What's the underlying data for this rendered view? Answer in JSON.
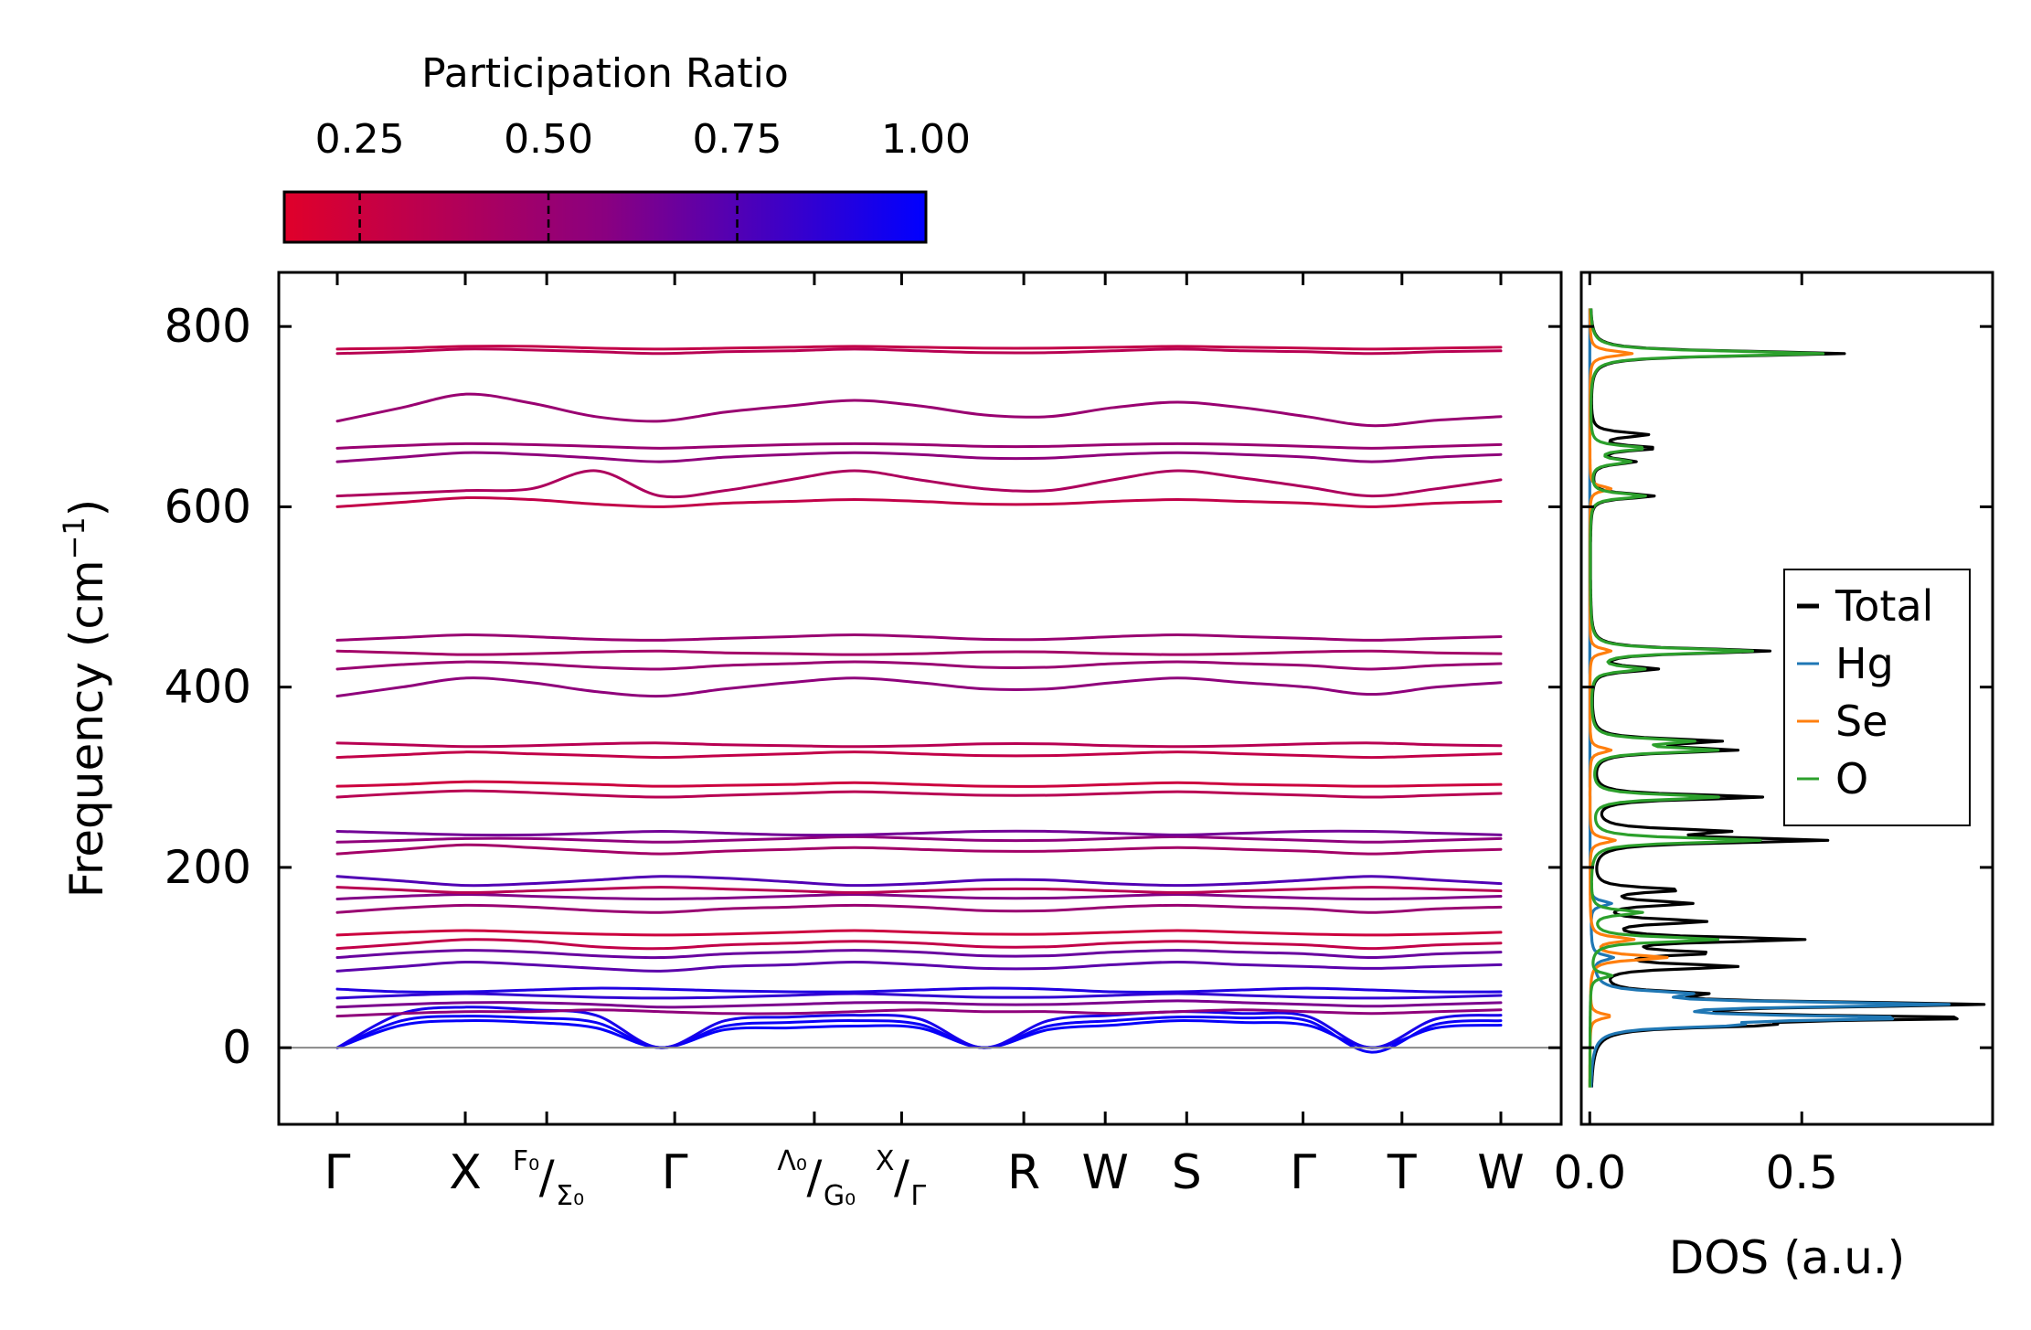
{
  "chart_data": [
    {
      "type": "line",
      "title": "",
      "ylabel": "Frequency (cm",
      "ylabel_sup": "−1",
      "ylabel_close": ")",
      "ylim": [
        -85,
        860
      ],
      "yticks": [
        0,
        200,
        400,
        600,
        800
      ],
      "x_ticks": [
        {
          "pos": 0.0,
          "label": "Γ"
        },
        {
          "pos": 0.11,
          "label": "X"
        },
        {
          "pos": 0.18,
          "label_a": "F₀",
          "label_b": "Σ₀",
          "split": true
        },
        {
          "pos": 0.29,
          "label": "Γ"
        },
        {
          "pos": 0.41,
          "label_a": "Λ₀",
          "label_b": "G₀",
          "split": true
        },
        {
          "pos": 0.485,
          "label_a": "X",
          "label_b": "Γ",
          "split": true
        },
        {
          "pos": 0.59,
          "label": "R"
        },
        {
          "pos": 0.66,
          "label": "W"
        },
        {
          "pos": 0.73,
          "label": "S"
        },
        {
          "pos": 0.83,
          "label": "Γ"
        },
        {
          "pos": 0.915,
          "label": "T"
        },
        {
          "pos": 1.0,
          "label": "W"
        }
      ],
      "colorbar": {
        "label": "Participation Ratio",
        "range": [
          0.15,
          1.0
        ],
        "ticks": [
          "0.25",
          "0.50",
          "0.75",
          "1.00"
        ],
        "tick_values": [
          0.25,
          0.5,
          0.75,
          1.0
        ],
        "colors": [
          "#e0002a",
          "#8a0080",
          "#0000ff"
        ]
      },
      "bands": [
        {
          "y": [
            0,
            25,
            30,
            28,
            22,
            0,
            20,
            22,
            24,
            22,
            0,
            20,
            25,
            30,
            28,
            25,
            0,
            22,
            25
          ],
          "pr": 0.98
        },
        {
          "y": [
            0,
            30,
            35,
            33,
            28,
            0,
            24,
            28,
            30,
            26,
            0,
            24,
            30,
            34,
            33,
            30,
            -5,
            26,
            30
          ],
          "pr": 0.97
        },
        {
          "y": [
            0,
            38,
            45,
            42,
            36,
            0,
            30,
            34,
            36,
            32,
            0,
            30,
            36,
            40,
            38,
            35,
            0,
            32,
            36
          ],
          "pr": 0.93
        },
        {
          "y": [
            35,
            38,
            40,
            40,
            42,
            40,
            38,
            38,
            40,
            42,
            40,
            40,
            38,
            40,
            42,
            40,
            38,
            40,
            42
          ],
          "pr": 0.55
        },
        {
          "y": [
            45,
            48,
            50,
            50,
            48,
            45,
            46,
            48,
            50,
            50,
            48,
            48,
            50,
            52,
            50,
            48,
            46,
            48,
            50
          ],
          "pr": 0.62
        },
        {
          "y": [
            55,
            58,
            60,
            58,
            56,
            55,
            56,
            58,
            60,
            58,
            56,
            56,
            58,
            60,
            58,
            56,
            55,
            56,
            58
          ],
          "pr": 0.85
        },
        {
          "y": [
            65,
            62,
            62,
            64,
            66,
            65,
            63,
            62,
            62,
            64,
            66,
            65,
            62,
            62,
            64,
            66,
            64,
            62,
            62
          ],
          "pr": 0.9
        },
        {
          "y": [
            85,
            90,
            95,
            92,
            88,
            85,
            90,
            92,
            95,
            92,
            88,
            88,
            92,
            95,
            92,
            90,
            88,
            90,
            92
          ],
          "pr": 0.72
        },
        {
          "y": [
            100,
            105,
            108,
            106,
            102,
            100,
            104,
            106,
            108,
            106,
            102,
            102,
            106,
            108,
            106,
            104,
            100,
            104,
            106
          ],
          "pr": 0.68
        },
        {
          "y": [
            110,
            115,
            120,
            118,
            112,
            110,
            114,
            116,
            118,
            116,
            112,
            112,
            116,
            118,
            116,
            114,
            110,
            114,
            116
          ],
          "pr": 0.3
        },
        {
          "y": [
            125,
            128,
            130,
            128,
            126,
            125,
            126,
            128,
            130,
            128,
            126,
            126,
            128,
            130,
            128,
            126,
            125,
            126,
            128
          ],
          "pr": 0.25
        },
        {
          "y": [
            150,
            155,
            158,
            156,
            152,
            150,
            154,
            156,
            158,
            156,
            152,
            152,
            156,
            158,
            156,
            154,
            150,
            154,
            156
          ],
          "pr": 0.5
        },
        {
          "y": [
            165,
            168,
            170,
            168,
            166,
            165,
            166,
            168,
            170,
            168,
            166,
            166,
            168,
            170,
            168,
            166,
            165,
            166,
            168
          ],
          "pr": 0.6
        },
        {
          "y": [
            178,
            175,
            172,
            174,
            176,
            178,
            176,
            174,
            172,
            174,
            176,
            176,
            174,
            172,
            174,
            176,
            178,
            176,
            174
          ],
          "pr": 0.35
        },
        {
          "y": [
            190,
            185,
            180,
            182,
            186,
            190,
            188,
            184,
            180,
            182,
            186,
            186,
            182,
            180,
            182,
            186,
            190,
            186,
            182
          ],
          "pr": 0.75
        },
        {
          "y": [
            215,
            220,
            225,
            222,
            218,
            215,
            218,
            220,
            222,
            220,
            218,
            218,
            220,
            222,
            220,
            218,
            215,
            218,
            220
          ],
          "pr": 0.45
        },
        {
          "y": [
            228,
            230,
            232,
            232,
            230,
            228,
            230,
            232,
            234,
            232,
            230,
            230,
            232,
            234,
            232,
            230,
            228,
            230,
            232
          ],
          "pr": 0.55
        },
        {
          "y": [
            240,
            238,
            236,
            236,
            238,
            240,
            238,
            236,
            236,
            238,
            240,
            240,
            238,
            236,
            238,
            240,
            240,
            238,
            236
          ],
          "pr": 0.65
        },
        {
          "y": [
            278,
            282,
            285,
            283,
            280,
            278,
            280,
            282,
            284,
            282,
            280,
            280,
            282,
            284,
            282,
            280,
            278,
            280,
            282
          ],
          "pr": 0.35
        },
        {
          "y": [
            290,
            292,
            295,
            294,
            292,
            290,
            291,
            292,
            294,
            292,
            290,
            290,
            292,
            294,
            292,
            291,
            290,
            291,
            292
          ],
          "pr": 0.25
        },
        {
          "y": [
            322,
            325,
            328,
            326,
            324,
            322,
            324,
            326,
            328,
            326,
            324,
            324,
            326,
            328,
            326,
            324,
            322,
            324,
            326
          ],
          "pr": 0.3
        },
        {
          "y": [
            338,
            336,
            334,
            335,
            337,
            338,
            336,
            335,
            334,
            335,
            337,
            337,
            335,
            334,
            335,
            337,
            338,
            336,
            335
          ],
          "pr": 0.35
        },
        {
          "y": [
            390,
            400,
            410,
            405,
            395,
            390,
            398,
            405,
            410,
            405,
            398,
            398,
            405,
            410,
            405,
            400,
            392,
            400,
            405
          ],
          "pr": 0.55
        },
        {
          "y": [
            420,
            425,
            428,
            426,
            422,
            420,
            424,
            426,
            428,
            426,
            422,
            422,
            426,
            428,
            426,
            424,
            420,
            424,
            426
          ],
          "pr": 0.5
        },
        {
          "y": [
            440,
            438,
            436,
            437,
            439,
            440,
            438,
            437,
            436,
            437,
            439,
            439,
            437,
            436,
            437,
            439,
            440,
            438,
            437
          ],
          "pr": 0.45
        },
        {
          "y": [
            452,
            455,
            458,
            456,
            453,
            452,
            454,
            456,
            458,
            456,
            453,
            453,
            456,
            458,
            456,
            454,
            452,
            454,
            456
          ],
          "pr": 0.5
        },
        {
          "y": [
            600,
            605,
            610,
            608,
            603,
            600,
            604,
            606,
            608,
            606,
            603,
            603,
            606,
            608,
            606,
            604,
            600,
            604,
            606
          ],
          "pr": 0.3
        },
        {
          "y": [
            612,
            615,
            618,
            620,
            640,
            612,
            618,
            630,
            640,
            630,
            620,
            618,
            630,
            640,
            632,
            622,
            612,
            620,
            630
          ],
          "pr": 0.4
        },
        {
          "y": [
            650,
            655,
            660,
            658,
            654,
            650,
            655,
            658,
            660,
            658,
            654,
            654,
            658,
            660,
            658,
            655,
            650,
            655,
            658
          ],
          "pr": 0.55
        },
        {
          "y": [
            665,
            668,
            670,
            669,
            667,
            665,
            667,
            669,
            670,
            669,
            667,
            667,
            669,
            670,
            669,
            667,
            665,
            667,
            669
          ],
          "pr": 0.5
        },
        {
          "y": [
            695,
            710,
            725,
            715,
            700,
            695,
            705,
            712,
            718,
            712,
            702,
            700,
            710,
            716,
            710,
            700,
            690,
            696,
            700
          ],
          "pr": 0.5
        },
        {
          "y": [
            770,
            772,
            775,
            774,
            772,
            770,
            772,
            773,
            775,
            773,
            771,
            771,
            773,
            775,
            773,
            772,
            770,
            772,
            773
          ],
          "pr": 0.35
        },
        {
          "y": [
            775,
            776,
            778,
            778,
            776,
            775,
            776,
            777,
            778,
            777,
            776,
            776,
            777,
            778,
            777,
            776,
            775,
            776,
            777
          ],
          "pr": 0.3
        }
      ]
    },
    {
      "type": "line",
      "title": "",
      "xlabel": "DOS (a.u.)",
      "xlim": [
        -0.02,
        0.95
      ],
      "xticks": [
        "0.0",
        "0.5"
      ],
      "xtick_values": [
        0.0,
        0.5
      ],
      "ylim": [
        -85,
        860
      ],
      "legend": "center-right",
      "series": [
        {
          "name": "Total",
          "color": "#000000",
          "peaks": [
            [
              25,
              0.3
            ],
            [
              33,
              0.85
            ],
            [
              48,
              0.9
            ],
            [
              60,
              0.2
            ],
            [
              90,
              0.32
            ],
            [
              105,
              0.25
            ],
            [
              120,
              0.48
            ],
            [
              140,
              0.25
            ],
            [
              160,
              0.22
            ],
            [
              175,
              0.2
            ],
            [
              230,
              0.53
            ],
            [
              240,
              0.28
            ],
            [
              278,
              0.4
            ],
            [
              330,
              0.32
            ],
            [
              340,
              0.28
            ],
            [
              420,
              0.15
            ],
            [
              440,
              0.42
            ],
            [
              612,
              0.15
            ],
            [
              650,
              0.1
            ],
            [
              665,
              0.15
            ],
            [
              680,
              0.13
            ],
            [
              770,
              0.6
            ]
          ]
        },
        {
          "name": "Hg",
          "color": "#1f77b4",
          "peaks": [
            [
              25,
              0.25
            ],
            [
              33,
              0.7
            ],
            [
              48,
              0.8
            ],
            [
              60,
              0.18
            ],
            [
              100,
              0.05
            ],
            [
              160,
              0.05
            ]
          ]
        },
        {
          "name": "Se",
          "color": "#ff7f0e",
          "peaks": [
            [
              35,
              0.05
            ],
            [
              100,
              0.18
            ],
            [
              120,
              0.1
            ],
            [
              230,
              0.06
            ],
            [
              330,
              0.05
            ],
            [
              440,
              0.05
            ],
            [
              620,
              0.05
            ],
            [
              770,
              0.1
            ]
          ]
        },
        {
          "name": "O",
          "color": "#2ca02c",
          "peaks": [
            [
              80,
              0.05
            ],
            [
              120,
              0.3
            ],
            [
              150,
              0.12
            ],
            [
              230,
              0.4
            ],
            [
              278,
              0.3
            ],
            [
              330,
              0.28
            ],
            [
              340,
              0.22
            ],
            [
              420,
              0.12
            ],
            [
              440,
              0.38
            ],
            [
              612,
              0.13
            ],
            [
              650,
              0.09
            ],
            [
              665,
              0.13
            ],
            [
              770,
              0.55
            ]
          ]
        }
      ]
    }
  ]
}
